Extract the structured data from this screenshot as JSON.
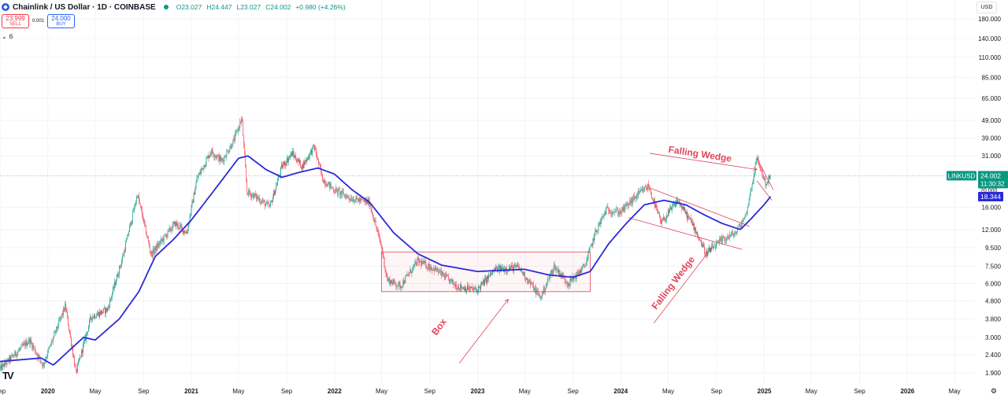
{
  "header": {
    "title": "Chainlink / US Dollar · 1D · COINBASE",
    "ohlc": {
      "o": "O23.027",
      "h": "H24.447",
      "l": "L23.027",
      "c": "C24.002",
      "chg": "+0.980 (+4.26%)"
    }
  },
  "trade": {
    "sell_price": "23.999",
    "sell_label": "SELL",
    "spread": "0.001",
    "buy_price": "24.000",
    "buy_label": "BUY"
  },
  "indicator_toggle": {
    "count": "6"
  },
  "currency": "USD",
  "colors": {
    "up": "#089981",
    "down": "#f23645",
    "ma": "#2a2ad8",
    "annotation": "#e04658",
    "grid": "#f0f3fa",
    "price_line": "#089981"
  },
  "icons": {
    "logo": "chainlink-logo-icon",
    "chevron": "chevron-down-icon",
    "tv": "tradingview-logo-icon",
    "settings": "settings-gear-icon"
  },
  "chart_data": {
    "type": "candlestick",
    "symbol": "LINKUSD",
    "scale": "log",
    "ylim": [
      1.65,
      230
    ],
    "xlim": [
      "2019-09-01",
      "2026-06-22"
    ],
    "y_ticks": [
      "180.000",
      "140.000",
      "110.000",
      "85.000",
      "65.000",
      "49.000",
      "39.000",
      "31.000",
      "16.000",
      "12.000",
      "9.500",
      "7.500",
      "6.000",
      "4.800",
      "3.800",
      "3.000",
      "2.400",
      "1.900"
    ],
    "x_ticks": [
      {
        "date": "2019-09-01",
        "label": "Sep",
        "bold": false
      },
      {
        "date": "2020-01-01",
        "label": "2020",
        "bold": true
      },
      {
        "date": "2020-05-01",
        "label": "May",
        "bold": false
      },
      {
        "date": "2020-09-01",
        "label": "Sep",
        "bold": false
      },
      {
        "date": "2021-01-01",
        "label": "2021",
        "bold": true
      },
      {
        "date": "2021-05-01",
        "label": "May",
        "bold": false
      },
      {
        "date": "2021-09-01",
        "label": "Sep",
        "bold": false
      },
      {
        "date": "2022-01-01",
        "label": "2022",
        "bold": true
      },
      {
        "date": "2022-05-01",
        "label": "May",
        "bold": false
      },
      {
        "date": "2022-09-01",
        "label": "Sep",
        "bold": false
      },
      {
        "date": "2023-01-01",
        "label": "2023",
        "bold": true
      },
      {
        "date": "2023-05-01",
        "label": "May",
        "bold": false
      },
      {
        "date": "2023-09-01",
        "label": "Sep",
        "bold": false
      },
      {
        "date": "2024-01-01",
        "label": "2024",
        "bold": true
      },
      {
        "date": "2024-05-01",
        "label": "May",
        "bold": false
      },
      {
        "date": "2024-09-01",
        "label": "Sep",
        "bold": false
      },
      {
        "date": "2025-01-01",
        "label": "2025",
        "bold": true
      },
      {
        "date": "2025-05-01",
        "label": "May",
        "bold": false
      },
      {
        "date": "2025-09-01",
        "label": "Sep",
        "bold": false
      },
      {
        "date": "2026-01-01",
        "label": "2026",
        "bold": true
      },
      {
        "date": "2026-05-01",
        "label": "May",
        "bold": false
      }
    ],
    "price_path": [
      [
        "2019-09-01",
        2.0
      ],
      [
        "2019-11-15",
        2.9
      ],
      [
        "2019-12-20",
        2.1
      ],
      [
        "2020-02-15",
        4.5
      ],
      [
        "2020-03-13",
        1.9
      ],
      [
        "2020-04-20",
        3.9
      ],
      [
        "2020-06-01",
        4.3
      ],
      [
        "2020-07-10",
        8.5
      ],
      [
        "2020-08-16",
        18.9
      ],
      [
        "2020-09-20",
        8.7
      ],
      [
        "2020-11-20",
        13.0
      ],
      [
        "2020-12-20",
        11.5
      ],
      [
        "2021-01-15",
        23.0
      ],
      [
        "2021-02-20",
        33.0
      ],
      [
        "2021-03-20",
        29.0
      ],
      [
        "2021-04-20",
        38.0
      ],
      [
        "2021-05-10",
        50.5
      ],
      [
        "2021-05-23",
        19.5
      ],
      [
        "2021-06-20",
        18.0
      ],
      [
        "2021-07-20",
        16.0
      ],
      [
        "2021-08-20",
        27.0
      ],
      [
        "2021-09-15",
        32.0
      ],
      [
        "2021-10-10",
        27.0
      ],
      [
        "2021-11-10",
        35.0
      ],
      [
        "2021-12-01",
        23.0
      ],
      [
        "2021-12-31",
        20.0
      ],
      [
        "2022-02-10",
        18.0
      ],
      [
        "2022-03-31",
        17.0
      ],
      [
        "2022-05-01",
        9.5
      ],
      [
        "2022-05-15",
        6.3
      ],
      [
        "2022-06-18",
        5.8
      ],
      [
        "2022-08-01",
        8.0
      ],
      [
        "2022-09-15",
        7.2
      ],
      [
        "2022-11-09",
        5.8
      ],
      [
        "2022-12-30",
        5.5
      ],
      [
        "2023-02-15",
        7.2
      ],
      [
        "2023-04-15",
        7.4
      ],
      [
        "2023-06-10",
        5.0
      ],
      [
        "2023-07-15",
        7.5
      ],
      [
        "2023-08-20",
        6.0
      ],
      [
        "2023-10-01",
        7.5
      ],
      [
        "2023-10-28",
        11.5
      ],
      [
        "2023-11-25",
        15.5
      ],
      [
        "2023-12-31",
        15.0
      ],
      [
        "2024-02-10",
        18.5
      ],
      [
        "2024-03-12",
        21.0
      ],
      [
        "2024-04-13",
        13.0
      ],
      [
        "2024-05-25",
        17.5
      ],
      [
        "2024-07-05",
        12.5
      ],
      [
        "2024-08-05",
        8.8
      ],
      [
        "2024-09-15",
        10.5
      ],
      [
        "2024-10-20",
        11.5
      ],
      [
        "2024-11-15",
        14.5
      ],
      [
        "2024-12-13",
        30.0
      ],
      [
        "2025-01-05",
        21.5
      ],
      [
        "2025-01-17",
        24.0
      ]
    ],
    "ma_path": [
      [
        "2019-09-01",
        2.2
      ],
      [
        "2019-12-15",
        2.3
      ],
      [
        "2020-01-15",
        2.1
      ],
      [
        "2020-03-01",
        2.6
      ],
      [
        "2020-04-01",
        3.0
      ],
      [
        "2020-05-01",
        2.9
      ],
      [
        "2020-07-01",
        3.8
      ],
      [
        "2020-08-20",
        5.4
      ],
      [
        "2020-10-01",
        8.5
      ],
      [
        "2020-11-15",
        10.5
      ],
      [
        "2020-12-31",
        13.5
      ],
      [
        "2021-03-01",
        20.0
      ],
      [
        "2021-05-01",
        30.0
      ],
      [
        "2021-05-25",
        31.0
      ],
      [
        "2021-07-10",
        26.0
      ],
      [
        "2021-08-20",
        23.5
      ],
      [
        "2021-10-01",
        25.0
      ],
      [
        "2021-11-20",
        26.5
      ],
      [
        "2022-01-01",
        24.5
      ],
      [
        "2022-02-15",
        20.0
      ],
      [
        "2022-04-01",
        17.0
      ],
      [
        "2022-06-01",
        11.5
      ],
      [
        "2022-08-01",
        8.8
      ],
      [
        "2022-10-01",
        7.6
      ],
      [
        "2022-12-31",
        7.0
      ],
      [
        "2023-03-01",
        7.1
      ],
      [
        "2023-05-01",
        7.2
      ],
      [
        "2023-07-01",
        6.7
      ],
      [
        "2023-09-01",
        6.5
      ],
      [
        "2023-10-15",
        7.0
      ],
      [
        "2023-12-01",
        10.0
      ],
      [
        "2024-01-15",
        13.0
      ],
      [
        "2024-03-01",
        16.5
      ],
      [
        "2024-04-20",
        17.5
      ],
      [
        "2024-06-15",
        16.5
      ],
      [
        "2024-08-01",
        14.5
      ],
      [
        "2024-09-15",
        13.0
      ],
      [
        "2024-11-01",
        12.0
      ],
      [
        "2024-12-01",
        14.0
      ],
      [
        "2024-12-31",
        16.5
      ],
      [
        "2025-01-17",
        18.344
      ]
    ],
    "annotations": [
      {
        "type": "rectangle",
        "label": "Box",
        "from": [
          "2022-05-01",
          5.4
        ],
        "to": [
          "2023-10-15",
          9.0
        ]
      },
      {
        "type": "arrow",
        "label": "Box",
        "text_at": [
          "2022-10-01",
          3.35
        ],
        "from": [
          "2022-11-15",
          2.15
        ],
        "to": [
          "2023-03-20",
          4.9
        ]
      },
      {
        "type": "trendline",
        "from": [
          "2024-03-15",
          20.5
        ],
        "to": [
          "2024-11-25",
          12.5
        ]
      },
      {
        "type": "trendline",
        "from": [
          "2024-01-20",
          14.0
        ],
        "to": [
          "2024-11-05",
          9.3
        ]
      },
      {
        "type": "arrow",
        "label": "Falling Wedge",
        "text_at": [
          "2024-05-20",
          5.9
        ],
        "from": [
          "2024-03-25",
          3.6
        ],
        "to": [
          "2024-08-20",
          9.5
        ]
      },
      {
        "type": "trendline",
        "from": [
          "2024-12-13",
          30.0
        ],
        "to": [
          "2025-01-24",
          20.0
        ]
      },
      {
        "type": "trendline",
        "from": [
          "2024-12-13",
          22.5
        ],
        "to": [
          "2025-01-20",
          17.5
        ]
      },
      {
        "type": "arrow",
        "label": "Falling Wedge",
        "text_at": [
          "2024-07-20",
          30.5
        ],
        "from": [
          "2024-03-15",
          32.0
        ],
        "to": [
          "2024-12-13",
          26.0
        ]
      }
    ],
    "price_line": 24.002,
    "badges": {
      "symbol_label": "LINKUSD",
      "last_price": "24.002",
      "countdown": "11:30:32",
      "ma_value": "18.344",
      "sub_price": "20.000"
    }
  }
}
